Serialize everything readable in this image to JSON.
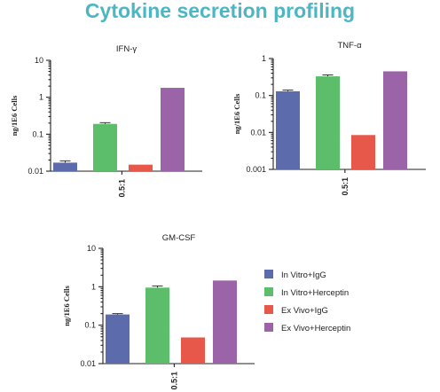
{
  "page": {
    "title": "Cytokine secretion profiling"
  },
  "colors": {
    "In Vitro+IgG": "#5b6bab",
    "In Vitro+Herceptin": "#5cbe6a",
    "Ex Vivo+IgG": "#e8584a",
    "Ex Vivo+Herceptin": "#9b63a8"
  },
  "legend": {
    "items": [
      "In Vitro+IgG",
      "In Vitro+Herceptin",
      "Ex Vivo+IgG",
      "Ex Vivo+Herceptin"
    ]
  },
  "chart_data": [
    {
      "type": "bar",
      "title": "IFN-γ",
      "ylabel": "ng/1E6 Cells",
      "xlabel": "",
      "categories": [
        "0.5:1"
      ],
      "yscale": "log",
      "ylim": [
        0.01,
        10
      ],
      "yticks": [
        "0.01",
        "0.1",
        "1",
        "10"
      ],
      "series": [
        {
          "name": "In Vitro+IgG",
          "values": [
            0.017
          ],
          "error": [
            0.002
          ]
        },
        {
          "name": "In Vitro+Herceptin",
          "values": [
            0.19
          ],
          "error": [
            0.015
          ]
        },
        {
          "name": "Ex Vivo+IgG",
          "values": [
            0.015
          ],
          "error": [
            0
          ]
        },
        {
          "name": "Ex Vivo+Herceptin",
          "values": [
            1.8
          ],
          "error": [
            0
          ]
        }
      ]
    },
    {
      "type": "bar",
      "title": "TNF-α",
      "ylabel": "ng/1E6 Cells",
      "xlabel": "",
      "categories": [
        "0.5:1"
      ],
      "yscale": "log",
      "ylim": [
        0.001,
        1
      ],
      "yticks": [
        "0.001",
        "0.01",
        "0.1",
        "1"
      ],
      "series": [
        {
          "name": "In Vitro+IgG",
          "values": [
            0.13
          ],
          "error": [
            0.01
          ]
        },
        {
          "name": "In Vitro+Herceptin",
          "values": [
            0.33
          ],
          "error": [
            0.03
          ]
        },
        {
          "name": "Ex Vivo+IgG",
          "values": [
            0.0085
          ],
          "error": [
            0
          ]
        },
        {
          "name": "Ex Vivo+Herceptin",
          "values": [
            0.45
          ],
          "error": [
            0
          ]
        }
      ]
    },
    {
      "type": "bar",
      "title": "GM-CSF",
      "ylabel": "ng/1E6 Cells",
      "xlabel": "",
      "categories": [
        "0.5:1"
      ],
      "yscale": "log",
      "ylim": [
        0.01,
        10
      ],
      "yticks": [
        "0.01",
        "0.1",
        "1",
        "10"
      ],
      "series": [
        {
          "name": "In Vitro+IgG",
          "values": [
            0.19
          ],
          "error": [
            0.01
          ]
        },
        {
          "name": "In Vitro+Herceptin",
          "values": [
            0.95
          ],
          "error": [
            0.1
          ]
        },
        {
          "name": "Ex Vivo+IgG",
          "values": [
            0.048
          ],
          "error": [
            0
          ]
        },
        {
          "name": "Ex Vivo+Herceptin",
          "values": [
            1.45
          ],
          "error": [
            0
          ]
        }
      ]
    }
  ]
}
